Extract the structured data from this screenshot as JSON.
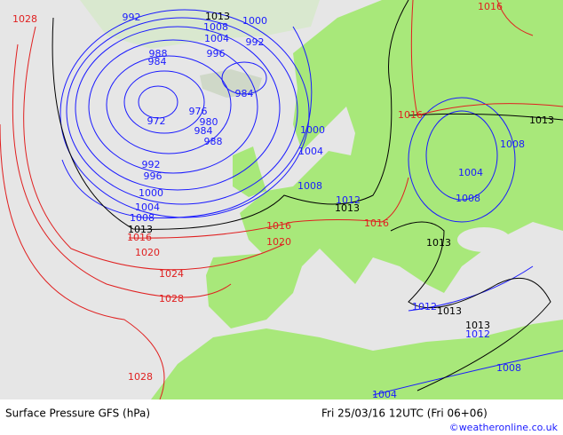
{
  "map": {
    "blue_labels": [
      992,
      1008,
      1000,
      1004,
      992,
      996,
      988,
      984,
      984,
      976,
      980,
      972,
      984,
      988,
      992,
      996,
      1000,
      1004,
      1008,
      1000,
      1004,
      1008,
      1012,
      1008,
      1004,
      1008,
      1012,
      1012,
      1008,
      1004
    ],
    "black_labels": [
      1013,
      1013,
      1013,
      1013,
      1013,
      1013,
      1013
    ],
    "red_labels": [
      1028,
      1016,
      1016,
      1016,
      1020,
      1016,
      1020,
      1016,
      1024,
      1028,
      1028
    ]
  },
  "footer": {
    "title": "Surface Pressure GFS (hPa)",
    "time": "Fri 25/03/16 12UTC  (Fri 06+06)",
    "credit": "©weatheronline.co.uk"
  }
}
